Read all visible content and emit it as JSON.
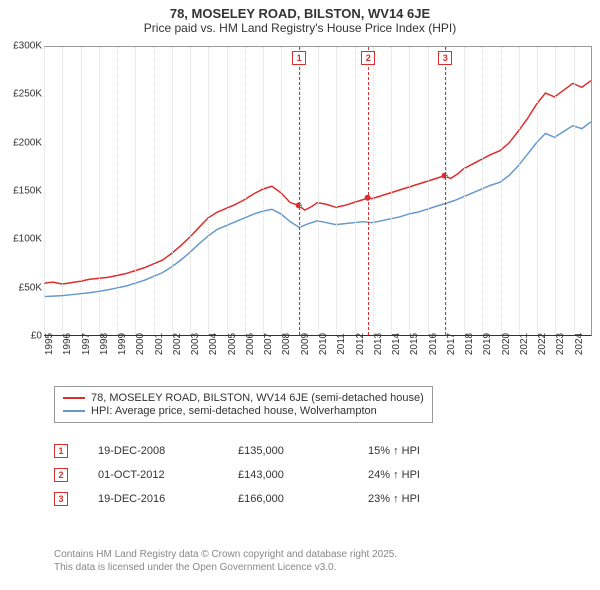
{
  "title": "78, MOSELEY ROAD, BILSTON, WV14 6JE",
  "subtitle": "Price paid vs. HM Land Registry's House Price Index (HPI)",
  "chart": {
    "type": "line",
    "background_color": "#ffffff",
    "grid_color": "#dddddd",
    "text_color": "#333333",
    "axis_label_fontsize": 10,
    "x_start_year": 1995,
    "x_end_year": 2025,
    "ylim": [
      0,
      300000
    ],
    "ytick_step": 50000,
    "y_labels": [
      "£0",
      "£50K",
      "£100K",
      "£150K",
      "£200K",
      "£250K",
      "£300K"
    ],
    "x_labels": [
      "1995",
      "1996",
      "1997",
      "1998",
      "1999",
      "2000",
      "2001",
      "2002",
      "2003",
      "2004",
      "2005",
      "2006",
      "2007",
      "2008",
      "2009",
      "2010",
      "2011",
      "2012",
      "2013",
      "2014",
      "2015",
      "2016",
      "2017",
      "2018",
      "2019",
      "2020",
      "2021",
      "2022",
      "2023",
      "2024"
    ],
    "series": [
      {
        "name": "property",
        "label": "78, MOSELEY ROAD, BILSTON, WV14 6JE (semi-detached house)",
        "color": "#dc2e2e",
        "line_width": 1.5,
        "data": [
          [
            1995.0,
            54000
          ],
          [
            1995.5,
            55000
          ],
          [
            1996.0,
            53000
          ],
          [
            1996.5,
            54500
          ],
          [
            1997.0,
            56000
          ],
          [
            1997.5,
            58000
          ],
          [
            1998.0,
            59000
          ],
          [
            1998.5,
            60000
          ],
          [
            1999.0,
            62000
          ],
          [
            1999.5,
            64000
          ],
          [
            2000.0,
            67000
          ],
          [
            2000.5,
            70000
          ],
          [
            2001.0,
            74000
          ],
          [
            2001.5,
            78000
          ],
          [
            2002.0,
            85000
          ],
          [
            2002.5,
            93000
          ],
          [
            2003.0,
            102000
          ],
          [
            2003.5,
            112000
          ],
          [
            2004.0,
            122000
          ],
          [
            2004.5,
            128000
          ],
          [
            2005.0,
            132000
          ],
          [
            2005.5,
            136000
          ],
          [
            2006.0,
            141000
          ],
          [
            2006.5,
            147000
          ],
          [
            2007.0,
            152000
          ],
          [
            2007.5,
            155000
          ],
          [
            2008.0,
            148000
          ],
          [
            2008.5,
            138000
          ],
          [
            2008.97,
            135000
          ],
          [
            2009.3,
            130000
          ],
          [
            2009.7,
            134000
          ],
          [
            2010.0,
            138000
          ],
          [
            2010.5,
            136000
          ],
          [
            2011.0,
            133000
          ],
          [
            2011.5,
            135000
          ],
          [
            2012.0,
            138000
          ],
          [
            2012.5,
            141000
          ],
          [
            2012.75,
            143000
          ],
          [
            2013.0,
            142000
          ],
          [
            2013.5,
            145000
          ],
          [
            2014.0,
            148000
          ],
          [
            2014.5,
            151000
          ],
          [
            2015.0,
            154000
          ],
          [
            2015.5,
            157000
          ],
          [
            2016.0,
            160000
          ],
          [
            2016.5,
            163000
          ],
          [
            2016.97,
            166000
          ],
          [
            2017.3,
            163000
          ],
          [
            2017.7,
            168000
          ],
          [
            2018.0,
            173000
          ],
          [
            2018.5,
            178000
          ],
          [
            2019.0,
            183000
          ],
          [
            2019.5,
            188000
          ],
          [
            2020.0,
            192000
          ],
          [
            2020.5,
            200000
          ],
          [
            2021.0,
            212000
          ],
          [
            2021.5,
            225000
          ],
          [
            2022.0,
            240000
          ],
          [
            2022.5,
            252000
          ],
          [
            2023.0,
            248000
          ],
          [
            2023.5,
            255000
          ],
          [
            2024.0,
            262000
          ],
          [
            2024.5,
            258000
          ],
          [
            2025.0,
            265000
          ]
        ]
      },
      {
        "name": "hpi",
        "label": "HPI: Average price, semi-detached house, Wolverhampton",
        "color": "#6699cc",
        "line_width": 1.5,
        "data": [
          [
            1995.0,
            40000
          ],
          [
            1995.5,
            40500
          ],
          [
            1996.0,
            41000
          ],
          [
            1996.5,
            42000
          ],
          [
            1997.0,
            43000
          ],
          [
            1997.5,
            44000
          ],
          [
            1998.0,
            45500
          ],
          [
            1998.5,
            47000
          ],
          [
            1999.0,
            49000
          ],
          [
            1999.5,
            51000
          ],
          [
            2000.0,
            54000
          ],
          [
            2000.5,
            57000
          ],
          [
            2001.0,
            61000
          ],
          [
            2001.5,
            65000
          ],
          [
            2002.0,
            71000
          ],
          [
            2002.5,
            78000
          ],
          [
            2003.0,
            86000
          ],
          [
            2003.5,
            95000
          ],
          [
            2004.0,
            103000
          ],
          [
            2004.5,
            110000
          ],
          [
            2005.0,
            114000
          ],
          [
            2005.5,
            118000
          ],
          [
            2006.0,
            122000
          ],
          [
            2006.5,
            126000
          ],
          [
            2007.0,
            129000
          ],
          [
            2007.5,
            131000
          ],
          [
            2008.0,
            126000
          ],
          [
            2008.5,
            118000
          ],
          [
            2009.0,
            112000
          ],
          [
            2009.5,
            116000
          ],
          [
            2010.0,
            119000
          ],
          [
            2010.5,
            117000
          ],
          [
            2011.0,
            115000
          ],
          [
            2011.5,
            116000
          ],
          [
            2012.0,
            117000
          ],
          [
            2012.5,
            118000
          ],
          [
            2013.0,
            117000
          ],
          [
            2013.5,
            119000
          ],
          [
            2014.0,
            121000
          ],
          [
            2014.5,
            123000
          ],
          [
            2015.0,
            126000
          ],
          [
            2015.5,
            128000
          ],
          [
            2016.0,
            131000
          ],
          [
            2016.5,
            134000
          ],
          [
            2017.0,
            137000
          ],
          [
            2017.5,
            140000
          ],
          [
            2018.0,
            144000
          ],
          [
            2018.5,
            148000
          ],
          [
            2019.0,
            152000
          ],
          [
            2019.5,
            156000
          ],
          [
            2020.0,
            159000
          ],
          [
            2020.5,
            166000
          ],
          [
            2021.0,
            176000
          ],
          [
            2021.5,
            188000
          ],
          [
            2022.0,
            200000
          ],
          [
            2022.5,
            210000
          ],
          [
            2023.0,
            206000
          ],
          [
            2023.5,
            212000
          ],
          [
            2024.0,
            218000
          ],
          [
            2024.5,
            215000
          ],
          [
            2025.0,
            222000
          ]
        ]
      }
    ],
    "sale_points": [
      {
        "x": 2008.97,
        "y": 135000,
        "color": "#dc2e2e",
        "radius": 3
      },
      {
        "x": 2012.75,
        "y": 143000,
        "color": "#dc2e2e",
        "radius": 3
      },
      {
        "x": 2016.97,
        "y": 166000,
        "color": "#dc2e2e",
        "radius": 3
      }
    ],
    "markers": [
      {
        "n": "1",
        "x": 2008.97
      },
      {
        "n": "2",
        "x": 2012.75
      },
      {
        "n": "3",
        "x": 2016.97
      }
    ]
  },
  "legend": {
    "rows": [
      {
        "color": "#dc2e2e",
        "label": "78, MOSELEY ROAD, BILSTON, WV14 6JE (semi-detached house)"
      },
      {
        "color": "#6699cc",
        "label": "HPI: Average price, semi-detached house, Wolverhampton"
      }
    ]
  },
  "sales": [
    {
      "n": "1",
      "date": "19-DEC-2008",
      "price": "£135,000",
      "diff": "15% ↑ HPI"
    },
    {
      "n": "2",
      "date": "01-OCT-2012",
      "price": "£143,000",
      "diff": "24% ↑ HPI"
    },
    {
      "n": "3",
      "date": "19-DEC-2016",
      "price": "£166,000",
      "diff": "23% ↑ HPI"
    }
  ],
  "attribution": {
    "line1": "Contains HM Land Registry data © Crown copyright and database right 2025.",
    "line2": "This data is licensed under the Open Government Licence v3.0."
  },
  "column_widths": {
    "date": "110px",
    "price": "100px",
    "diff": "100px"
  }
}
